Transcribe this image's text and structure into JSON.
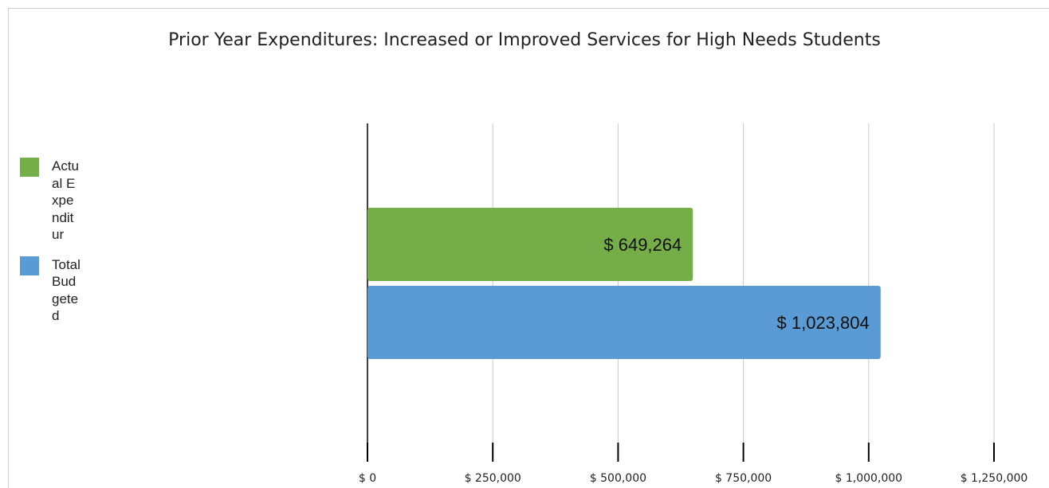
{
  "chart_data": {
    "type": "bar",
    "orientation": "horizontal",
    "title": "Prior Year Expenditures: Increased or Improved Services for High Needs Students",
    "series": [
      {
        "name": "Actual Expenditur",
        "value": 649264,
        "label": "$ 649,264",
        "color": "#75ad48"
      },
      {
        "name": "Total Budgeted",
        "value": 1023804,
        "label": "$ 1,023,804",
        "color": "#5b9bd5"
      }
    ],
    "xlim": [
      0,
      1250000
    ],
    "ticks": [
      {
        "value": 0,
        "label": "$ 0"
      },
      {
        "value": 250000,
        "label": "$ 250,000"
      },
      {
        "value": 500000,
        "label": "$ 500,000"
      },
      {
        "value": 750000,
        "label": "$ 750,000"
      },
      {
        "value": 1000000,
        "label": "$ 1,000,000"
      },
      {
        "value": 1250000,
        "label": "$ 1,250,000"
      }
    ],
    "grid": true,
    "legend_position": "left"
  }
}
